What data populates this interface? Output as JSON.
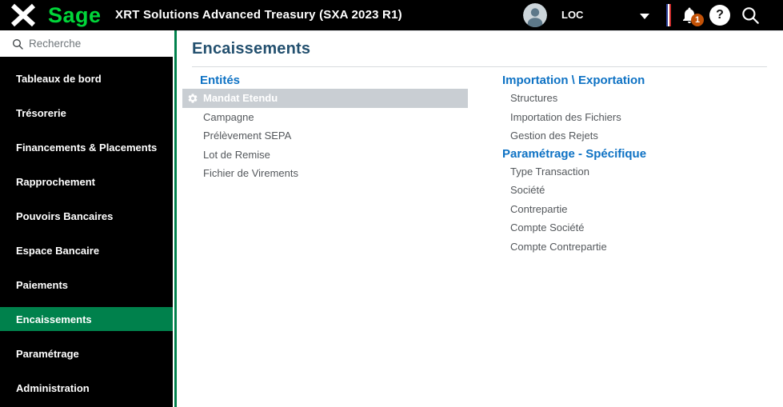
{
  "header": {
    "logo_text": "Sage",
    "app_title": "XRT Solutions Advanced Treasury (SXA 2023 R1)",
    "user_label": "LOC",
    "notification_count": "1",
    "help_glyph": "?",
    "icons": [
      "menu-close-icon",
      "avatar",
      "chevron-down-icon",
      "french-flag-icon",
      "bell-icon",
      "help-icon",
      "search-icon"
    ]
  },
  "sidebar": {
    "search_placeholder": "Recherche",
    "items": [
      {
        "label": "Tableaux de bord",
        "active": false
      },
      {
        "label": "Trésorerie",
        "active": false
      },
      {
        "label": "Financements & Placements",
        "active": false
      },
      {
        "label": "Rapprochement",
        "active": false
      },
      {
        "label": "Pouvoirs Bancaires",
        "active": false
      },
      {
        "label": "Espace Bancaire",
        "active": false
      },
      {
        "label": "Paiements",
        "active": false
      },
      {
        "label": "Encaissements",
        "active": true
      },
      {
        "label": "Paramétrage",
        "active": false
      },
      {
        "label": "Administration",
        "active": false
      }
    ]
  },
  "main": {
    "page_title": "Encaissements"
  },
  "menu": {
    "columns": [
      {
        "sections": [
          {
            "title": "Entités",
            "items": [
              {
                "label": "Mandat Etendu",
                "selected": true
              },
              {
                "label": "Campagne",
                "selected": false
              },
              {
                "label": "Prélèvement SEPA",
                "selected": false
              },
              {
                "label": "Lot de Remise",
                "selected": false
              },
              {
                "label": "Fichier de Virements",
                "selected": false
              }
            ]
          }
        ]
      },
      {
        "sections": [
          {
            "title": "Importation \\ Exportation",
            "items": [
              {
                "label": "Structures",
                "selected": false
              },
              {
                "label": "Importation des Fichiers",
                "selected": false
              },
              {
                "label": "Gestion des Rejets",
                "selected": false
              }
            ]
          },
          {
            "title": "Paramétrage - Spécifique",
            "items": [
              {
                "label": "Type Transaction",
                "selected": false
              },
              {
                "label": "Société",
                "selected": false
              },
              {
                "label": "Contrepartie",
                "selected": false
              },
              {
                "label": "Compte Société",
                "selected": false
              },
              {
                "label": "Compte Contrepartie",
                "selected": false
              }
            ]
          }
        ]
      }
    ]
  },
  "colors": {
    "topbar_bg": "#000000",
    "brand_green": "#00D639",
    "accent_green": "#00814C",
    "section_blue": "#0E72C4",
    "title_navy": "#23506F",
    "selected_gray": "#C9CED3",
    "badge_orange": "#C35207"
  }
}
